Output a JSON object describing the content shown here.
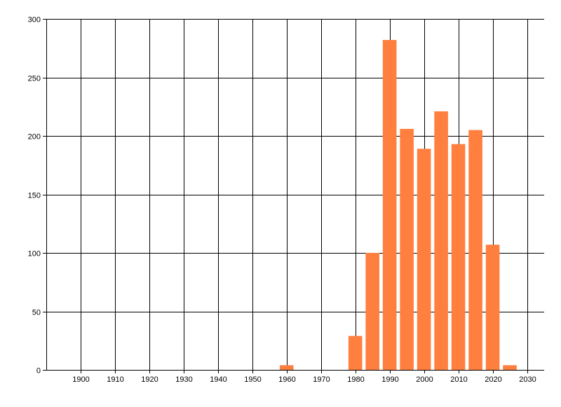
{
  "chart_data": {
    "type": "bar",
    "title": "",
    "xlabel": "",
    "ylabel": "",
    "x": [
      1960,
      1980,
      1985,
      1990,
      1995,
      2000,
      2005,
      2010,
      2015,
      2020,
      2025
    ],
    "values": [
      4,
      29,
      100,
      282,
      206,
      189,
      221,
      193,
      205,
      107,
      4
    ],
    "bar_width_years": 4,
    "xlim": [
      1890,
      2035
    ],
    "ylim": [
      0,
      300
    ],
    "xticks": [
      1900,
      1910,
      1920,
      1930,
      1940,
      1950,
      1960,
      1970,
      1980,
      1990,
      2000,
      2010,
      2020,
      2030
    ],
    "yticks": [
      0,
      50,
      100,
      150,
      200,
      250,
      300
    ],
    "grid": true,
    "legend": "none",
    "bar_color": "#FF7F3F",
    "grid_color": "#000000"
  }
}
